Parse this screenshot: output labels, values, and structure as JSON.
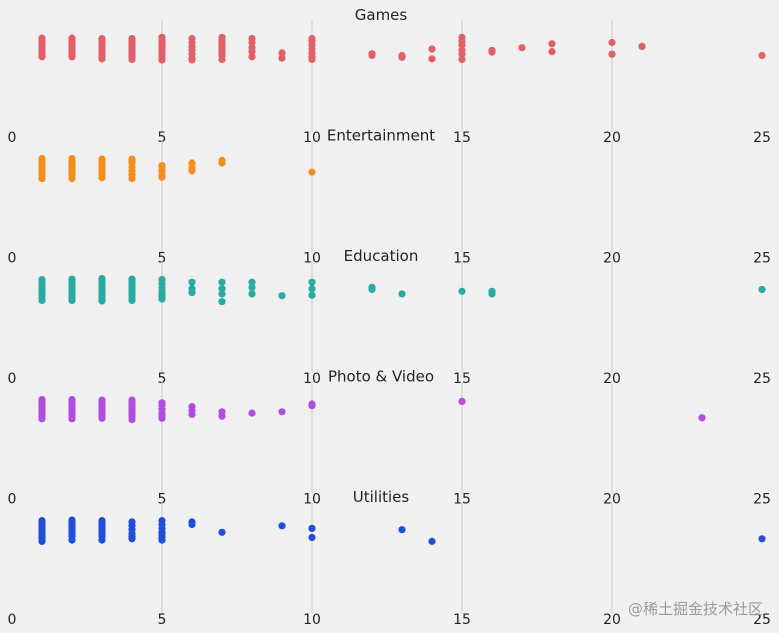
{
  "watermark": "@稀土掘金技术社区",
  "chart_data": [
    {
      "type": "scatter",
      "title": "Games",
      "color": "#e0606a",
      "xlim": [
        0,
        25
      ],
      "xticks": [
        0,
        5,
        10,
        15,
        20,
        25
      ],
      "grid": true,
      "x": [
        1,
        1,
        1,
        1,
        1,
        1,
        1,
        1,
        1,
        1,
        2,
        2,
        2,
        2,
        2,
        2,
        2,
        2,
        2,
        2,
        3,
        3,
        3,
        3,
        3,
        3,
        3,
        3,
        3,
        4,
        4,
        4,
        4,
        4,
        4,
        4,
        4,
        4,
        5,
        5,
        5,
        5,
        5,
        5,
        5,
        5,
        5,
        5,
        6,
        6,
        6,
        6,
        6,
        6,
        6,
        7,
        7,
        7,
        7,
        7,
        7,
        7,
        7,
        7,
        8,
        8,
        8,
        8,
        8,
        9,
        9,
        10,
        10,
        10,
        10,
        10,
        10,
        10,
        12,
        12,
        13,
        13,
        14,
        14,
        15,
        15,
        15,
        15,
        15,
        15,
        16,
        16,
        17,
        18,
        18,
        20,
        20,
        21,
        25
      ],
      "y": [
        0.08,
        0.16,
        0.24,
        0.32,
        0.4,
        0.48,
        0.56,
        0.64,
        0.72,
        0.8,
        0.08,
        0.16,
        0.24,
        0.32,
        0.4,
        0.48,
        0.56,
        0.64,
        0.72,
        0.8,
        0.1,
        0.2,
        0.3,
        0.4,
        0.5,
        0.6,
        0.7,
        0.8,
        0.88,
        0.1,
        0.2,
        0.3,
        0.4,
        0.5,
        0.6,
        0.7,
        0.8,
        0.9,
        0.05,
        0.15,
        0.25,
        0.35,
        0.45,
        0.55,
        0.65,
        0.75,
        0.85,
        0.92,
        0.1,
        0.25,
        0.4,
        0.55,
        0.7,
        0.85,
        0.92,
        0.05,
        0.15,
        0.25,
        0.35,
        0.45,
        0.55,
        0.65,
        0.75,
        0.9,
        0.1,
        0.25,
        0.45,
        0.6,
        0.8,
        0.65,
        0.85,
        0.1,
        0.2,
        0.35,
        0.5,
        0.65,
        0.8,
        0.9,
        0.68,
        0.75,
        0.75,
        0.82,
        0.5,
        0.88,
        0.05,
        0.2,
        0.35,
        0.55,
        0.7,
        0.9,
        0.55,
        0.62,
        0.45,
        0.3,
        0.6,
        0.25,
        0.7,
        0.4,
        0.75
      ]
    },
    {
      "type": "scatter",
      "title": "Entertainment",
      "color": "#f28e1c",
      "xlim": [
        0,
        25
      ],
      "xticks": [
        0,
        5,
        10,
        15,
        20,
        25
      ],
      "grid": true,
      "x": [
        1,
        1,
        1,
        1,
        1,
        1,
        1,
        1,
        1,
        1,
        2,
        2,
        2,
        2,
        2,
        2,
        2,
        2,
        2,
        2,
        3,
        3,
        3,
        3,
        3,
        3,
        3,
        3,
        4,
        4,
        4,
        4,
        4,
        4,
        4,
        5,
        5,
        5,
        5,
        5,
        6,
        6,
        6,
        7,
        7,
        10
      ],
      "y": [
        0.08,
        0.16,
        0.24,
        0.32,
        0.4,
        0.48,
        0.56,
        0.64,
        0.72,
        0.85,
        0.08,
        0.16,
        0.24,
        0.32,
        0.4,
        0.48,
        0.56,
        0.64,
        0.72,
        0.85,
        0.1,
        0.2,
        0.3,
        0.4,
        0.5,
        0.6,
        0.7,
        0.82,
        0.1,
        0.25,
        0.4,
        0.55,
        0.7,
        0.85,
        0.2,
        0.35,
        0.55,
        0.7,
        0.8,
        0.4,
        0.25,
        0.45,
        0.55,
        0.15,
        0.25,
        0.6
      ]
    },
    {
      "type": "scatter",
      "title": "Education",
      "color": "#2aaaa0",
      "xlim": [
        0,
        25
      ],
      "xticks": [
        0,
        5,
        10,
        15,
        20,
        25
      ],
      "grid": true,
      "x": [
        1,
        1,
        1,
        1,
        1,
        1,
        1,
        1,
        2,
        2,
        2,
        2,
        2,
        2,
        2,
        2,
        2,
        3,
        3,
        3,
        3,
        3,
        3,
        3,
        3,
        3,
        3,
        4,
        4,
        4,
        4,
        4,
        4,
        4,
        4,
        4,
        5,
        5,
        5,
        5,
        5,
        5,
        5,
        6,
        6,
        6,
        7,
        7,
        7,
        7,
        8,
        8,
        8,
        9,
        10,
        10,
        10,
        12,
        12,
        13,
        15,
        16,
        16,
        25
      ],
      "y": [
        0.1,
        0.22,
        0.34,
        0.46,
        0.58,
        0.7,
        0.82,
        0.9,
        0.08,
        0.18,
        0.28,
        0.38,
        0.48,
        0.58,
        0.68,
        0.8,
        0.9,
        0.06,
        0.15,
        0.25,
        0.35,
        0.45,
        0.55,
        0.65,
        0.75,
        0.85,
        0.92,
        0.08,
        0.18,
        0.28,
        0.38,
        0.48,
        0.58,
        0.68,
        0.8,
        0.9,
        0.1,
        0.25,
        0.4,
        0.55,
        0.65,
        0.75,
        0.85,
        0.2,
        0.45,
        0.6,
        0.2,
        0.45,
        0.65,
        0.95,
        0.2,
        0.4,
        0.65,
        0.72,
        0.2,
        0.45,
        0.7,
        0.4,
        0.48,
        0.65,
        0.55,
        0.55,
        0.65,
        0.48
      ]
    },
    {
      "type": "scatter",
      "title": "Photo & Video",
      "color": "#b04ee0",
      "xlim": [
        0,
        25
      ],
      "xticks": [
        0,
        5,
        10,
        15,
        20,
        25
      ],
      "grid": true,
      "x": [
        1,
        1,
        1,
        1,
        1,
        1,
        1,
        1,
        1,
        1,
        2,
        2,
        2,
        2,
        2,
        2,
        2,
        2,
        2,
        2,
        3,
        3,
        3,
        3,
        3,
        3,
        3,
        3,
        4,
        4,
        4,
        4,
        4,
        4,
        4,
        4,
        5,
        5,
        5,
        5,
        5,
        5,
        6,
        6,
        6,
        7,
        7,
        8,
        9,
        10,
        10,
        15,
        23
      ],
      "y": [
        0.08,
        0.16,
        0.24,
        0.32,
        0.4,
        0.48,
        0.56,
        0.64,
        0.72,
        0.82,
        0.08,
        0.16,
        0.24,
        0.32,
        0.4,
        0.48,
        0.56,
        0.64,
        0.72,
        0.82,
        0.1,
        0.2,
        0.3,
        0.4,
        0.5,
        0.6,
        0.7,
        0.8,
        0.1,
        0.2,
        0.3,
        0.4,
        0.5,
        0.6,
        0.72,
        0.85,
        0.2,
        0.3,
        0.45,
        0.6,
        0.7,
        0.8,
        0.35,
        0.5,
        0.65,
        0.55,
        0.72,
        0.6,
        0.55,
        0.25,
        0.32,
        0.15,
        0.78
      ]
    },
    {
      "type": "scatter",
      "title": "Utilities",
      "color": "#1f4fd6",
      "xlim": [
        0,
        25
      ],
      "xticks": [
        0,
        5,
        10,
        15,
        20,
        25
      ],
      "grid": true,
      "x": [
        1,
        1,
        1,
        1,
        1,
        1,
        1,
        1,
        1,
        2,
        2,
        2,
        2,
        2,
        2,
        2,
        2,
        2,
        2,
        3,
        3,
        3,
        3,
        3,
        3,
        3,
        3,
        4,
        4,
        4,
        4,
        4,
        4,
        5,
        5,
        5,
        5,
        5,
        5,
        5,
        6,
        6,
        7,
        9,
        10,
        10,
        13,
        14,
        25
      ],
      "y": [
        0.1,
        0.2,
        0.3,
        0.4,
        0.5,
        0.6,
        0.7,
        0.8,
        0.9,
        0.08,
        0.16,
        0.24,
        0.32,
        0.4,
        0.48,
        0.56,
        0.64,
        0.72,
        0.85,
        0.1,
        0.2,
        0.3,
        0.4,
        0.5,
        0.6,
        0.7,
        0.85,
        0.15,
        0.3,
        0.45,
        0.6,
        0.72,
        0.8,
        0.1,
        0.25,
        0.4,
        0.55,
        0.65,
        0.75,
        0.85,
        0.15,
        0.25,
        0.55,
        0.3,
        0.4,
        0.75,
        0.45,
        0.9,
        0.8
      ]
    }
  ]
}
